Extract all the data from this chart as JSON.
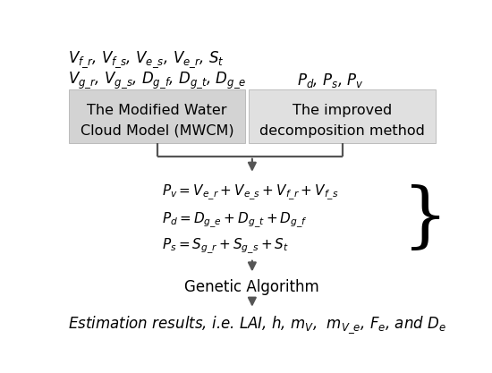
{
  "bg_color": "#ffffff",
  "fig_width": 5.5,
  "fig_height": 4.17,
  "dpi": 100,
  "line1": "$V_{f\\_r}$, $V_{f\\_s}$, $V_{e\\_s}$, $V_{e\\_r}$, $S_t$",
  "line2_left": "$V_{g\\_r}$, $V_{g\\_s}$, $D_{g\\_f}$, $D_{g\\_t}$, $D_{g\\_e}$",
  "line2_right": "$P_d$, $P_s$, $P_v$",
  "box_left_text1": "The Modified Water",
  "box_left_text2": "Cloud Model (MWCM)",
  "box_right_text1": "The improved",
  "box_right_text2": "decomposition method",
  "eq1": "$P_v = V_{e\\_r} + V_{e\\_s} + V_{f\\_r} + V_{f\\_s}$",
  "eq2": "$P_d = D_{g\\_e} + D_{g\\_t} + D_{g\\_f}$",
  "eq3": "$P_s = S_{g\\_r} + S_{g\\_s} + S_t$",
  "ga_label": "Genetic Algorithm",
  "result_label": "Estimation results, i.e. LAI, $h$, $m_V$,  $m_{V\\_e}$, $F_e$, and $D_e$",
  "box_left_color": "#d3d3d3",
  "box_right_color": "#e0e0e0",
  "arrow_color": "#555555",
  "text_color": "#000000",
  "font_size_top": 12,
  "font_size_box": 11.5,
  "font_size_eq": 11,
  "font_size_ga": 12,
  "font_size_result": 12
}
